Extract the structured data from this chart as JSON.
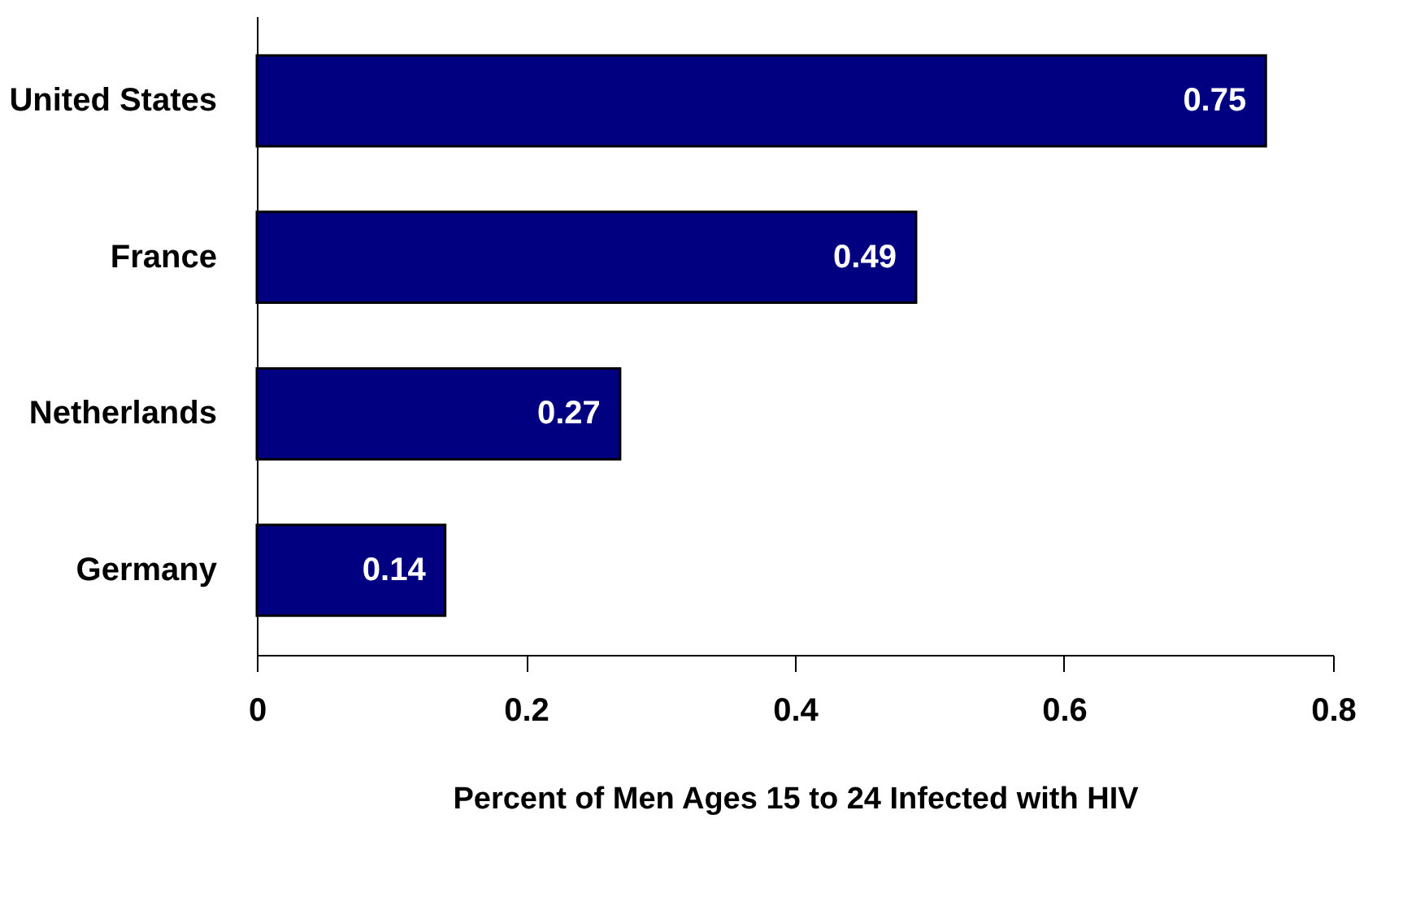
{
  "chart_data": {
    "type": "bar",
    "orientation": "horizontal",
    "categories": [
      "United States",
      "France",
      "Netherlands",
      "Germany"
    ],
    "values": [
      0.75,
      0.49,
      0.27,
      0.14
    ],
    "color": "#000080",
    "xlabel": "Percent of Men Ages 15 to 24 Infected with HIV",
    "xlim": [
      0,
      0.8
    ],
    "xticks": [
      0,
      0.2,
      0.4,
      0.6,
      0.8
    ],
    "data_labels": true
  }
}
